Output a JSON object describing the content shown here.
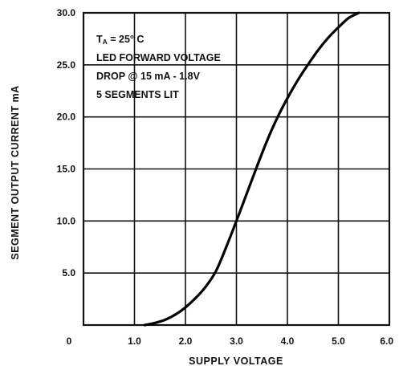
{
  "chart_data": {
    "type": "line",
    "xlabel": "SUPPLY VOLTAGE",
    "ylabel": "SEGMENT OUTPUT CURRENT mA",
    "xlim": [
      0,
      6.0
    ],
    "ylim": [
      0,
      30.0
    ],
    "grid": true,
    "x_ticks": [
      {
        "value": 0,
        "label": "0"
      },
      {
        "value": 1,
        "label": "1.0"
      },
      {
        "value": 2,
        "label": "2.0"
      },
      {
        "value": 3,
        "label": "3.0"
      },
      {
        "value": 4,
        "label": "4.0"
      },
      {
        "value": 5,
        "label": "5.0"
      },
      {
        "value": 6,
        "label": "6.0"
      }
    ],
    "y_ticks": [
      {
        "value": 5,
        "label": "5.0"
      },
      {
        "value": 10,
        "label": "10.0"
      },
      {
        "value": 15,
        "label": "15.0"
      },
      {
        "value": 20,
        "label": "20.0"
      },
      {
        "value": 25,
        "label": "25.0"
      },
      {
        "value": 30,
        "label": "30.0"
      }
    ],
    "series": [
      {
        "x": [
          1.2,
          1.4,
          1.6,
          1.8,
          2.0,
          2.2,
          2.4,
          2.6,
          2.8,
          3.0,
          3.2,
          3.4,
          3.6,
          3.8,
          4.0,
          4.2,
          4.4,
          4.6,
          4.8,
          5.0,
          5.2,
          5.4
        ],
        "y": [
          0.0,
          0.2,
          0.5,
          1.0,
          1.7,
          2.6,
          3.7,
          5.2,
          7.5,
          10.0,
          12.6,
          15.2,
          17.7,
          19.9,
          21.8,
          23.5,
          25.0,
          26.4,
          27.6,
          28.6,
          29.5,
          30.0
        ]
      }
    ],
    "annotations": [
      {
        "main": "T",
        "sub": "A",
        "rest": " = 25° C"
      },
      {
        "text": "LED FORWARD VOLTAGE"
      },
      {
        "text": "DROP @ 15 mA - 1.8V"
      },
      {
        "text": "5 SEGMENTS LIT"
      }
    ]
  }
}
